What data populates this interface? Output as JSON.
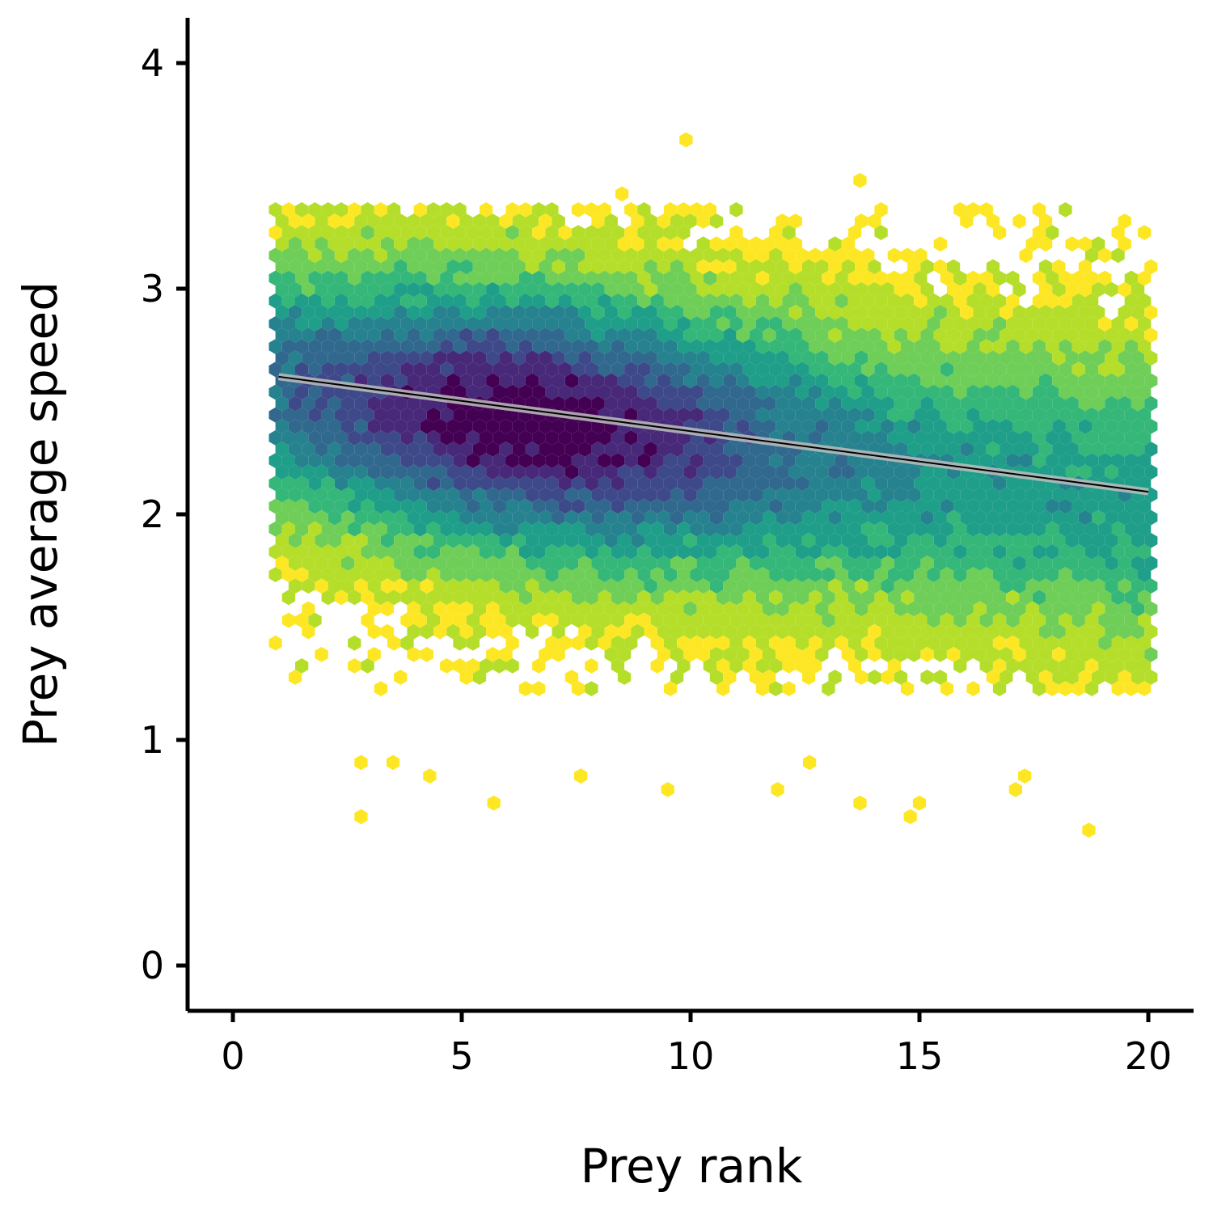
{
  "chart_data": {
    "type": "hexbin",
    "xlabel": "Prey rank",
    "ylabel": "Prey average speed",
    "xlim": [
      -1,
      21
    ],
    "ylim": [
      -0.2,
      4.2
    ],
    "x_ticks": [
      0,
      5,
      10,
      15,
      20
    ],
    "y_ticks": [
      0,
      1,
      2,
      3,
      4
    ],
    "grid": false,
    "legend": "none",
    "colormap": [
      "#fde725",
      "#b5de2b",
      "#6ece58",
      "#35b779",
      "#1f9e89",
      "#26828e",
      "#31688e",
      "#3e4989",
      "#482878",
      "#440154"
    ],
    "density_summary": {
      "x_range": [
        1,
        20
      ],
      "y_core_range": [
        1.3,
        3.2
      ],
      "densest_region": {
        "x": [
          4,
          9
        ],
        "y": [
          2.3,
          2.7
        ]
      }
    },
    "outlier_points": [
      {
        "x": 9.9,
        "y": 3.66
      },
      {
        "x": 13.7,
        "y": 3.48
      },
      {
        "x": 8.5,
        "y": 3.42
      },
      {
        "x": 2.8,
        "y": 0.66
      },
      {
        "x": 5.7,
        "y": 0.72
      },
      {
        "x": 14.8,
        "y": 0.66
      },
      {
        "x": 15.0,
        "y": 0.72
      },
      {
        "x": 18.7,
        "y": 0.6
      },
      {
        "x": 13.7,
        "y": 0.72
      },
      {
        "x": 9.5,
        "y": 0.78
      },
      {
        "x": 11.9,
        "y": 0.78
      },
      {
        "x": 17.1,
        "y": 0.78
      },
      {
        "x": 17.3,
        "y": 0.84
      },
      {
        "x": 4.3,
        "y": 0.84
      },
      {
        "x": 7.6,
        "y": 0.84
      },
      {
        "x": 2.8,
        "y": 0.9
      },
      {
        "x": 3.5,
        "y": 0.9
      },
      {
        "x": 12.6,
        "y": 0.9
      }
    ],
    "trend_line": {
      "type": "linear",
      "color": "#000000",
      "x": [
        1,
        20
      ],
      "y": [
        2.61,
        2.1
      ]
    }
  }
}
